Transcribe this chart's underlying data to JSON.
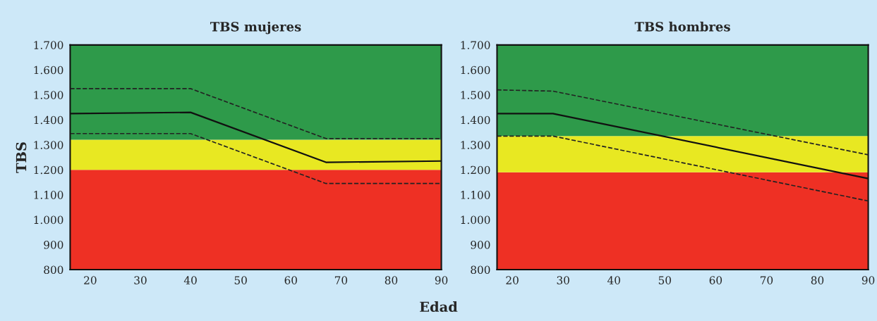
{
  "chart_data": [
    {
      "type": "line",
      "title": "TBS mujeres",
      "ylabel": "TBS",
      "xlabel": "Edad",
      "xlim": [
        16,
        90
      ],
      "xticks": [
        20,
        30,
        40,
        50,
        60,
        70,
        80,
        90
      ],
      "ylim": [
        800,
        1700
      ],
      "yticks": [
        {
          "value": 800,
          "label": "800"
        },
        {
          "value": 900,
          "label": "900"
        },
        {
          "value": 1000,
          "label": "1.000"
        },
        {
          "value": 1100,
          "label": "1.100"
        },
        {
          "value": 1200,
          "label": "1.200"
        },
        {
          "value": 1300,
          "label": "1.300"
        },
        {
          "value": 1400,
          "label": "1.400"
        },
        {
          "value": 1500,
          "label": "1.500"
        },
        {
          "value": 1600,
          "label": "1.600"
        },
        {
          "value": 1700,
          "label": "1.700"
        }
      ],
      "bands": [
        {
          "axis": "y",
          "from": 800,
          "to": 1200,
          "color": "#ee3024"
        },
        {
          "axis": "y",
          "from": 1200,
          "to": 1320,
          "color": "#e8e822"
        },
        {
          "axis": "y",
          "from": 1320,
          "to": 1700,
          "color": "#2e9a4a"
        }
      ],
      "series": [
        {
          "color": "#111111",
          "x": [
            16,
            40,
            67,
            90
          ],
          "values": [
            1425,
            1430,
            1230,
            1235
          ],
          "line_style": "solid"
        },
        {
          "color": "#222222",
          "x": [
            16,
            40,
            67,
            90
          ],
          "values": [
            1525,
            1525,
            1325,
            1325
          ],
          "line_style": "dashed"
        },
        {
          "color": "#222222",
          "x": [
            16,
            40,
            67,
            90
          ],
          "values": [
            1345,
            1345,
            1145,
            1145
          ],
          "line_style": "dashed"
        }
      ],
      "grid": false,
      "legend": false
    },
    {
      "type": "line",
      "title": "TBS hombres",
      "xlim": [
        17,
        90
      ],
      "xticks": [
        20,
        30,
        40,
        50,
        60,
        70,
        80,
        90
      ],
      "ylim": [
        800,
        1700
      ],
      "yticks": [
        {
          "value": 800,
          "label": "800"
        },
        {
          "value": 900,
          "label": "900"
        },
        {
          "value": 1000,
          "label": "1.000"
        },
        {
          "value": 1100,
          "label": "1.100"
        },
        {
          "value": 1200,
          "label": "1.200"
        },
        {
          "value": 1300,
          "label": "1.300"
        },
        {
          "value": 1400,
          "label": "1.400"
        },
        {
          "value": 1500,
          "label": "1.500"
        },
        {
          "value": 1600,
          "label": "1.600"
        },
        {
          "value": 1700,
          "label": "1.700"
        }
      ],
      "bands": [
        {
          "axis": "y",
          "from": 800,
          "to": 1190,
          "color": "#ee3024"
        },
        {
          "axis": "y",
          "from": 1190,
          "to": 1335,
          "color": "#e8e822"
        },
        {
          "axis": "y",
          "from": 1335,
          "to": 1700,
          "color": "#2e9a4a"
        }
      ],
      "series": [
        {
          "color": "#111111",
          "x": [
            17,
            28,
            90
          ],
          "values": [
            1425,
            1425,
            1165
          ],
          "line_style": "solid"
        },
        {
          "color": "#222222",
          "x": [
            17,
            28,
            90
          ],
          "values": [
            1520,
            1515,
            1260
          ],
          "line_style": "dashed"
        },
        {
          "color": "#222222",
          "x": [
            17,
            28,
            90
          ],
          "values": [
            1335,
            1335,
            1075
          ],
          "line_style": "dashed"
        }
      ],
      "grid": false,
      "legend": false
    }
  ]
}
